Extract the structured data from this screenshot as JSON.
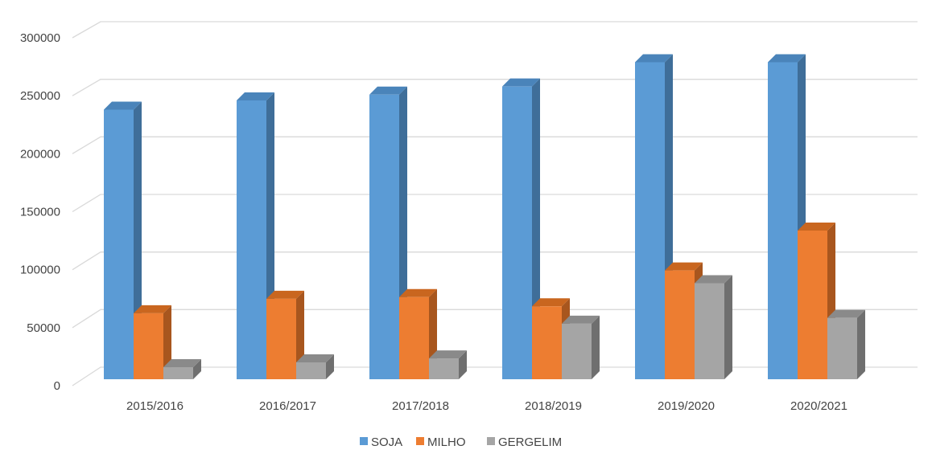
{
  "chart_data": {
    "type": "bar",
    "title": "",
    "xlabel": "",
    "ylabel": "",
    "ylim": [
      0,
      300000
    ],
    "yticks": [
      0,
      50000,
      100000,
      150000,
      200000,
      250000,
      300000
    ],
    "grid": true,
    "legend_position": "bottom",
    "categories": [
      "2015/2016",
      "2016/2017",
      "2017/2018",
      "2018/2019",
      "2019/2020",
      "2020/2021"
    ],
    "series": [
      {
        "name": "SOJA",
        "color": "#5B9BD5",
        "side": "#3F6E99",
        "top": "#4A84BA",
        "values": [
          233000,
          241000,
          246000,
          253000,
          274000,
          274000
        ]
      },
      {
        "name": "MILHO",
        "color": "#ED7D31",
        "side": "#A8561E",
        "top": "#C9661F",
        "values": [
          57000,
          69500,
          71000,
          63000,
          94000,
          128500
        ]
      },
      {
        "name": "GERGELIM",
        "color": "#A5A5A5",
        "side": "#6F6F6F",
        "top": "#8A8A8A",
        "values": [
          10400,
          14600,
          18000,
          48000,
          83000,
          53000
        ]
      }
    ]
  }
}
